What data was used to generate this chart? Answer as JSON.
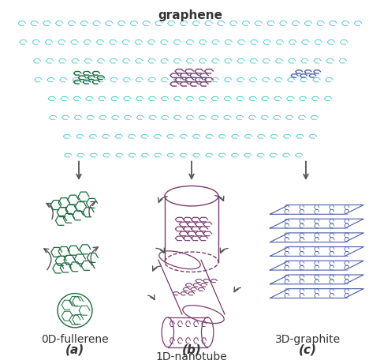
{
  "title": "graphene",
  "label_a": "0D-fullerene",
  "label_b": "1D-nanotube",
  "label_c": "3D-graphite",
  "sub_a": "(a)",
  "sub_b": "(b)",
  "sub_c": "(c)",
  "bg_color": "#ffffff",
  "graphene_color": "#5bc8d4",
  "fullerene_color": "#1a6b3c",
  "nanotube_color": "#7b3b6e",
  "graphite_color": "#4a5fa5",
  "arrow_color": "#555555",
  "title_fontsize": 11,
  "label_fontsize": 10,
  "sub_fontsize": 11
}
